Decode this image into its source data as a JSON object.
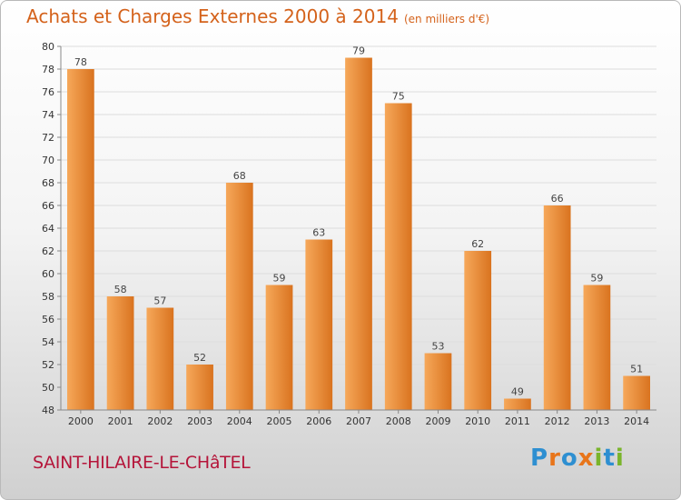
{
  "header": {
    "title": "Achats et Charges Externes 2000 à 2014",
    "subtitle": "(en milliers d'€)"
  },
  "footer": {
    "commune": "SAINT-HILAIRE-LE-CHâTEL",
    "brand": "Proxiti",
    "brand_colors": [
      "#2e8fd1",
      "#e8751a",
      "#2e8fd1",
      "#e8751a",
      "#7ab42b",
      "#2e8fd1",
      "#7ab42b"
    ]
  },
  "colors": {
    "title": "#d4621b",
    "bar_light": "#f6a85a",
    "bar_dark": "#d9731f",
    "commune": "#b5153a"
  },
  "chart_data": {
    "type": "bar",
    "categories": [
      "2000",
      "2001",
      "2002",
      "2003",
      "2004",
      "2005",
      "2006",
      "2007",
      "2008",
      "2009",
      "2010",
      "2011",
      "2012",
      "2013",
      "2014"
    ],
    "values": [
      78,
      58,
      57,
      52,
      68,
      59,
      63,
      79,
      75,
      53,
      62,
      49,
      66,
      59,
      51
    ],
    "ylim": [
      48,
      80
    ],
    "yticks": [
      48,
      50,
      52,
      54,
      56,
      58,
      60,
      62,
      64,
      66,
      68,
      70,
      72,
      74,
      76,
      78,
      80
    ],
    "grid": true
  }
}
